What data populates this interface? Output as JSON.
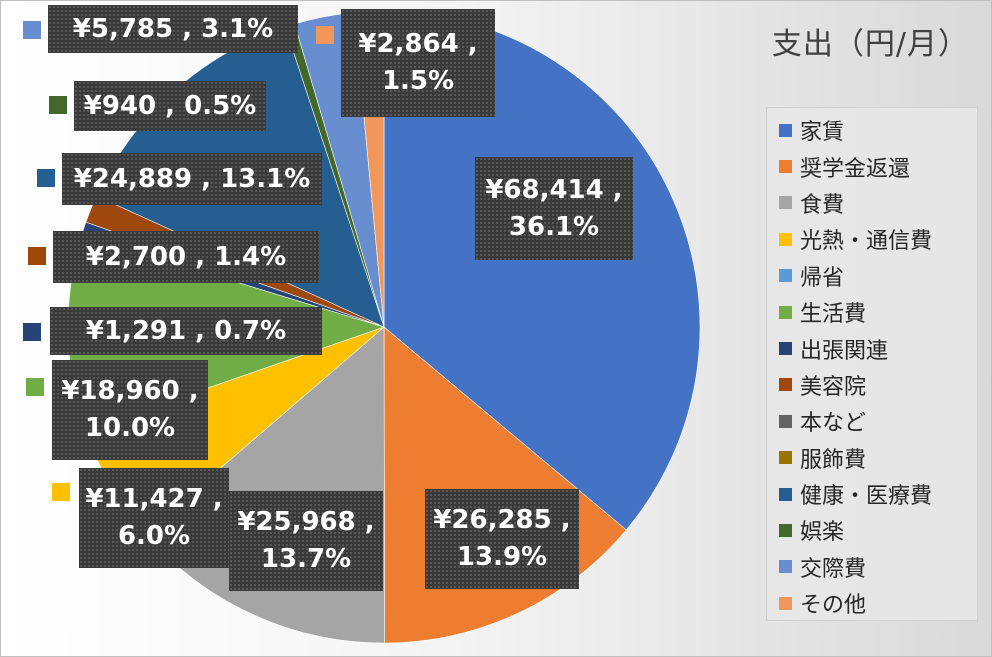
{
  "chart": {
    "title": "支出（円/月）"
  },
  "chart_data": {
    "type": "pie",
    "title": "支出（円/月）",
    "legend_position": "right",
    "start_angle_deg": 0,
    "direction": "clockwise",
    "slices": [
      {
        "name": "家賃",
        "value": 68414,
        "label": "¥68,414 ,\n36.1%",
        "color": "#4472c4"
      },
      {
        "name": "奨学金返還",
        "value": 26285,
        "label": "¥26,285 ,\n13.9%",
        "color": "#ed7d31"
      },
      {
        "name": "食費",
        "value": 25968,
        "label": "¥25,968 ,\n13.7%",
        "color": "#a5a5a5"
      },
      {
        "name": "光熱・通信費",
        "value": 11427,
        "label": "¥11,427 ,\n6.0%",
        "color": "#ffc000"
      },
      {
        "name": "帰省",
        "value": 0,
        "label": "",
        "color": "#5b9bd5"
      },
      {
        "name": "生活費",
        "value": 18960,
        "label": "¥18,960 ,\n10.0%",
        "color": "#70ad47"
      },
      {
        "name": "出張関連",
        "value": 1291,
        "label": "¥1,291 , 0.7%",
        "color": "#264478"
      },
      {
        "name": "美容院",
        "value": 2700,
        "label": "¥2,700 , 1.4%",
        "color": "#9e480e"
      },
      {
        "name": "本など",
        "value": 0,
        "label": "",
        "color": "#636363"
      },
      {
        "name": "服飾費",
        "value": 0,
        "label": "",
        "color": "#997300"
      },
      {
        "name": "健康・医療費",
        "value": 24889,
        "label": "¥24,889 , 13.1%",
        "color": "#255e91"
      },
      {
        "name": "娯楽",
        "value": 940,
        "label": "¥940 , 0.5%",
        "color": "#43682b"
      },
      {
        "name": "交際費",
        "value": 5785,
        "label": "¥5,785 , 3.1%",
        "color": "#698ed0"
      },
      {
        "name": "その他",
        "value": 2864,
        "label": "¥2,864 ,\n1.5%",
        "color": "#f1975a"
      }
    ]
  }
}
